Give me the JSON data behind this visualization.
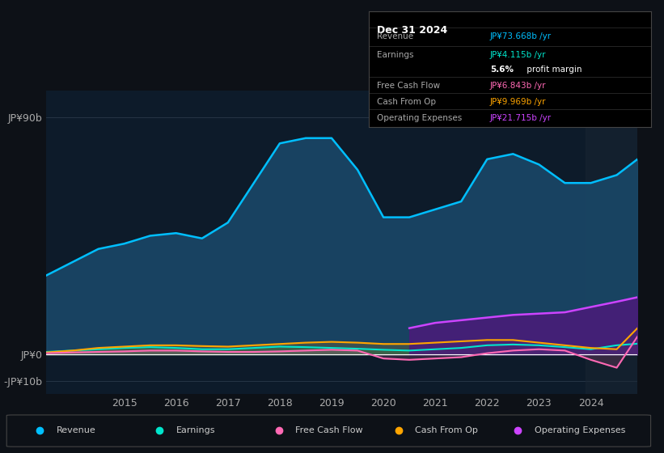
{
  "background_color": "#0d1117",
  "plot_bg_color": "#0d1b2a",
  "title": "Dec 31 2024",
  "info_box": {
    "title": "Dec 31 2024",
    "rows": [
      {
        "label": "Revenue",
        "value": "JP¥73.668b /yr",
        "value_color": "#00bfff"
      },
      {
        "label": "Earnings",
        "value": "JP¥4.115b /yr",
        "value_color": "#00e5cc"
      },
      {
        "label": "",
        "value": "5.6% profit margin",
        "value_color": "#ffffff",
        "bold_part": "5.6%"
      },
      {
        "label": "Free Cash Flow",
        "value": "JP¥6.843b /yr",
        "value_color": "#ff69b4"
      },
      {
        "label": "Cash From Op",
        "value": "JP¥9.969b /yr",
        "value_color": "#ffa500"
      },
      {
        "label": "Operating Expenses",
        "value": "JP¥21.715b /yr",
        "value_color": "#cc44ff"
      }
    ]
  },
  "colors": {
    "revenue": "#00bfff",
    "earnings": "#00e5cc",
    "free_cash_flow": "#ff69b4",
    "cash_from_op": "#ffa500",
    "operating_expenses": "#cc44ff"
  },
  "fill_colors": {
    "revenue": "#1a4a6b",
    "earnings": "#1a5c52",
    "operating_expenses_area": "#4b1a7a"
  },
  "ylim": [
    -15,
    100
  ],
  "yticks_labels": [
    "JP¥90b",
    "JP¥0",
    "-JP¥10b"
  ],
  "yticks_values": [
    90,
    0,
    -10
  ],
  "xlabel_color": "#aaaaaa",
  "ylabel_color": "#aaaaaa",
  "grid_color": "#2a3a4a",
  "legend": [
    {
      "label": "Revenue",
      "color": "#00bfff"
    },
    {
      "label": "Earnings",
      "color": "#00e5cc"
    },
    {
      "label": "Free Cash Flow",
      "color": "#ff69b4"
    },
    {
      "label": "Cash From Op",
      "color": "#ffa500"
    },
    {
      "label": "Operating Expenses",
      "color": "#cc44ff"
    }
  ],
  "x_years": [
    2013.5,
    2014,
    2014.5,
    2015,
    2015.5,
    2016,
    2016.5,
    2017,
    2017.5,
    2018,
    2018.5,
    2019,
    2019.5,
    2020,
    2020.5,
    2021,
    2021.5,
    2022,
    2022.5,
    2023,
    2023.5,
    2024,
    2024.5,
    2024.9
  ],
  "revenue": [
    30,
    35,
    40,
    42,
    45,
    46,
    44,
    50,
    65,
    80,
    82,
    82,
    70,
    52,
    52,
    55,
    58,
    74,
    76,
    72,
    65,
    65,
    68,
    74
  ],
  "earnings": [
    1,
    1.5,
    2,
    2.5,
    2.8,
    2.5,
    2.0,
    2.0,
    2.5,
    3.0,
    2.8,
    2.5,
    2.2,
    1.8,
    1.5,
    2.0,
    2.5,
    3.5,
    3.8,
    3.5,
    2.8,
    2.0,
    3.5,
    4.1
  ],
  "free_cash_flow": [
    0.5,
    0.8,
    1.0,
    1.2,
    1.5,
    1.5,
    1.2,
    1.0,
    1.0,
    1.2,
    1.5,
    1.8,
    1.5,
    -1.5,
    -2.0,
    -1.5,
    -1.0,
    0.5,
    1.5,
    2.0,
    1.5,
    -2.0,
    -5.0,
    6.8
  ],
  "cash_from_op": [
    0.8,
    1.5,
    2.5,
    3.0,
    3.5,
    3.5,
    3.2,
    3.0,
    3.5,
    4.0,
    4.5,
    4.8,
    4.5,
    4.0,
    4.0,
    4.5,
    5.0,
    5.5,
    5.5,
    4.5,
    3.5,
    2.5,
    2.0,
    10.0
  ],
  "operating_expenses": [
    null,
    null,
    null,
    null,
    null,
    null,
    null,
    null,
    null,
    null,
    null,
    null,
    null,
    null,
    10.0,
    12.0,
    13.0,
    14.0,
    15.0,
    15.5,
    16.0,
    18.0,
    20.0,
    21.7
  ],
  "xtick_years": [
    2015,
    2016,
    2017,
    2018,
    2019,
    2020,
    2021,
    2022,
    2023,
    2024
  ]
}
